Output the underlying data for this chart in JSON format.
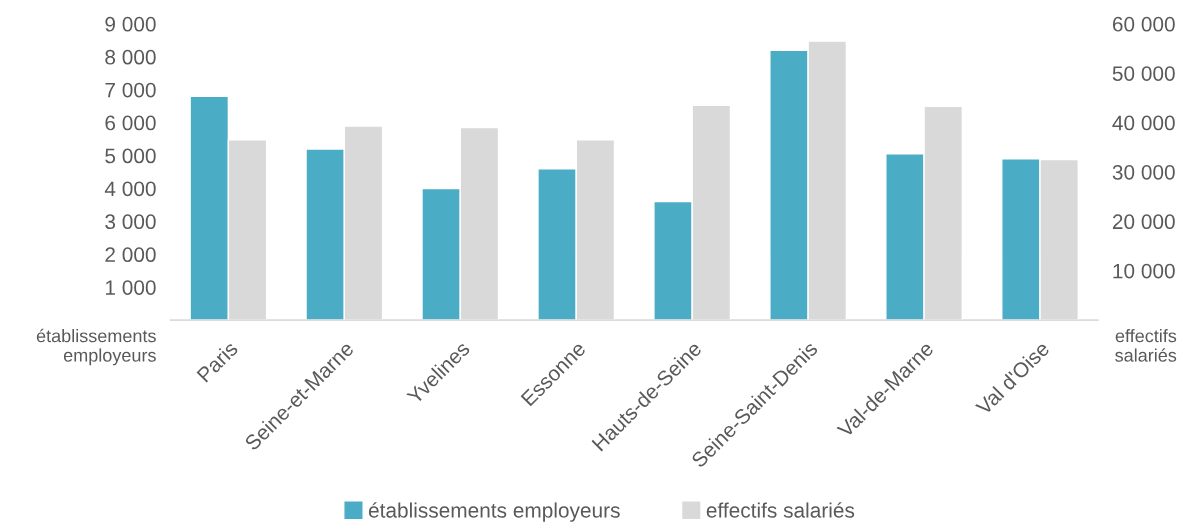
{
  "chart_data": {
    "type": "bar",
    "categories": [
      "Paris",
      "Seine-et-Marne",
      "Yvelines",
      "Essonne",
      "Hauts-de-Seine",
      "Seine-Saint-Denis",
      "Val-de-Marne",
      "Val d'Oise"
    ],
    "series": [
      {
        "name": "établissements employeurs",
        "color": "#4bacc6",
        "values": [
          6800,
          5200,
          4000,
          4600,
          3600,
          8200,
          5050,
          4900
        ]
      },
      {
        "name": "effectifs salariés",
        "color": "#d9d9d9",
        "axis": "y2",
        "values": [
          36500,
          39300,
          39000,
          36500,
          43500,
          56500,
          43300,
          32500
        ]
      }
    ],
    "ylabel": "établissements\nemployeurs",
    "y2label": "effectifs\nsalariés",
    "ylim": [
      0,
      9000
    ],
    "yticks": [
      {
        "value": 1000,
        "label": "1 000"
      },
      {
        "value": 2000,
        "label": "2 000"
      },
      {
        "value": 3000,
        "label": "3 000"
      },
      {
        "value": 4000,
        "label": "4 000"
      },
      {
        "value": 5000,
        "label": "5 000"
      },
      {
        "value": 6000,
        "label": "6 000"
      },
      {
        "value": 7000,
        "label": "7 000"
      },
      {
        "value": 8000,
        "label": "8 000"
      },
      {
        "value": 9000,
        "label": "9 000"
      }
    ],
    "y2lim": [
      0,
      60000
    ],
    "y2ticks": [
      {
        "value": 10000,
        "label": "10 000"
      },
      {
        "value": 20000,
        "label": "20 000"
      },
      {
        "value": 30000,
        "label": "30 000"
      },
      {
        "value": 40000,
        "label": "40 000"
      },
      {
        "value": 50000,
        "label": "50 000"
      },
      {
        "value": 60000,
        "label": "60 000"
      }
    ],
    "grid": false,
    "legend": "bottom"
  }
}
